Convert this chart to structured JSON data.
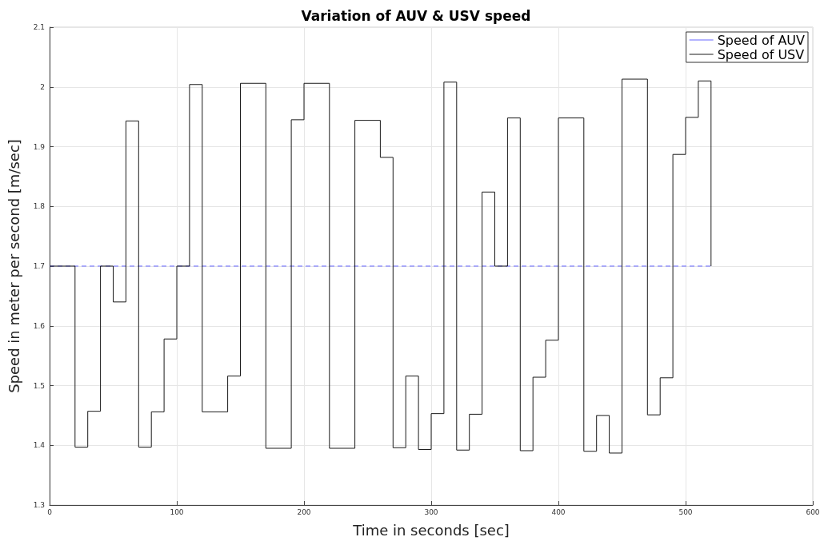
{
  "chart_data": {
    "type": "step",
    "title": "Variation of AUV & USV speed",
    "xlabel": "Time in seconds [sec]",
    "ylabel": "Speed in meter per second [m/sec]",
    "xlim": [
      0,
      600
    ],
    "xticks": [
      0,
      100,
      200,
      300,
      400,
      500,
      600
    ],
    "ylim": [
      1.3,
      2.1
    ],
    "yticks": [
      1.3,
      1.4,
      1.5,
      1.6,
      1.7,
      1.8,
      1.9,
      2,
      2.1
    ],
    "grid": true,
    "legend": "top right",
    "marker": "none",
    "series": [
      {
        "name": "Speed of AUV",
        "color": "#6666ff",
        "line_style": "dashed",
        "x": [
          0,
          520
        ],
        "values": [
          1.7,
          1.7
        ]
      },
      {
        "name": "Speed of USV",
        "color": "#1a1a1a",
        "line_style": "solid",
        "x": [
          0,
          20,
          30,
          40,
          50,
          60,
          70,
          80,
          90,
          100,
          110,
          120,
          140,
          150,
          170,
          190,
          200,
          220,
          240,
          260,
          270,
          280,
          290,
          300,
          310,
          320,
          330,
          340,
          350,
          360,
          370,
          380,
          390,
          400,
          420,
          430,
          440,
          450,
          470,
          480,
          490,
          500,
          510,
          520
        ],
        "values": [
          1.7,
          1.397,
          1.457,
          1.7,
          1.64,
          1.943,
          1.397,
          1.456,
          1.578,
          1.7,
          2.004,
          1.456,
          1.516,
          2.006,
          1.395,
          1.945,
          2.006,
          1.395,
          1.944,
          1.882,
          1.396,
          1.516,
          1.393,
          1.453,
          2.008,
          1.392,
          1.452,
          1.824,
          1.7,
          1.948,
          1.391,
          1.514,
          1.576,
          1.948,
          1.39,
          1.45,
          1.387,
          2.013,
          1.451,
          1.513,
          1.887,
          1.949,
          2.01,
          1.7
        ]
      }
    ]
  }
}
